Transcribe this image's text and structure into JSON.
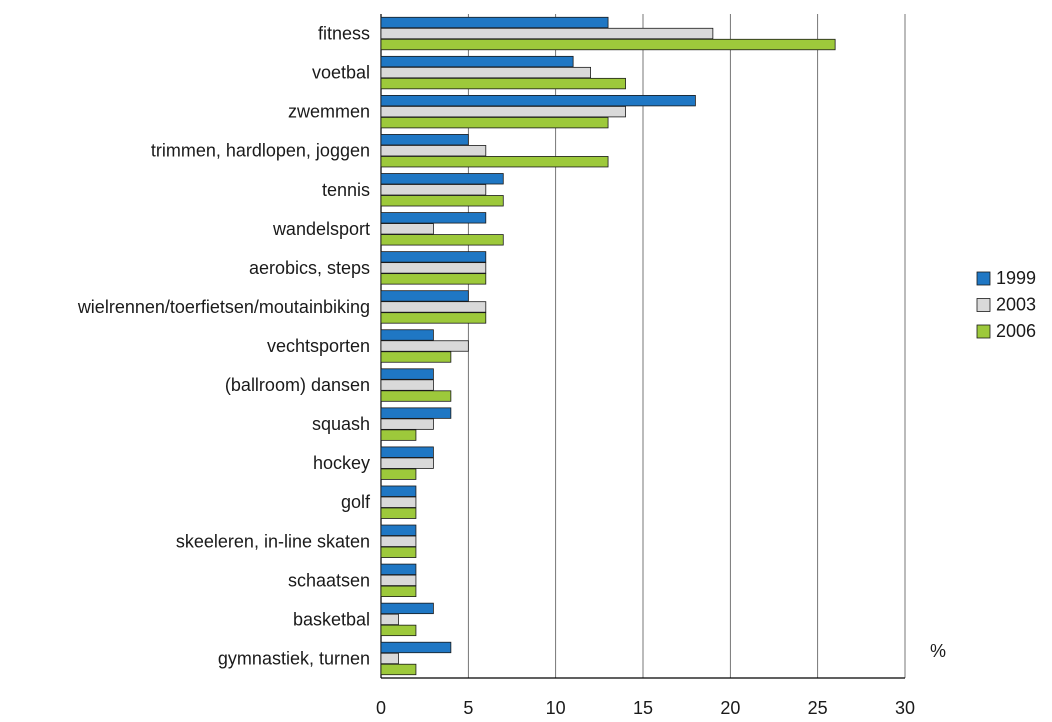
{
  "chart_data": {
    "type": "bar",
    "orientation": "horizontal",
    "categories": [
      "fitness",
      "voetbal",
      "zwemmen",
      "trimmen, hardlopen, joggen",
      "tennis",
      "wandelsport",
      "aerobics, steps",
      "wielrennen/toerfietsen/moutainbiking",
      "vechtsporten",
      "(ballroom) dansen",
      "squash",
      "hockey",
      "golf",
      "skeeleren, in-line skaten",
      "schaatsen",
      "basketbal",
      "gymnastiek, turnen"
    ],
    "series": [
      {
        "name": "1999",
        "color": "#1f77c4",
        "values": [
          13,
          11,
          18,
          5,
          7,
          6,
          6,
          5,
          3,
          3,
          4,
          3,
          2,
          2,
          2,
          3,
          4
        ]
      },
      {
        "name": "2003",
        "color": "#d9d9d9",
        "values": [
          19,
          12,
          14,
          6,
          6,
          3,
          6,
          6,
          5,
          3,
          3,
          3,
          2,
          2,
          2,
          1,
          1
        ]
      },
      {
        "name": "2006",
        "color": "#9dc93b",
        "values": [
          26,
          14,
          13,
          13,
          7,
          7,
          6,
          6,
          4,
          4,
          2,
          2,
          2,
          2,
          2,
          2,
          2
        ]
      }
    ],
    "xlim": [
      0,
      30
    ],
    "xticks": [
      0,
      5,
      10,
      15,
      20,
      25,
      30
    ],
    "unit_label": "%",
    "grid": "vertical",
    "legend_position": "right"
  }
}
